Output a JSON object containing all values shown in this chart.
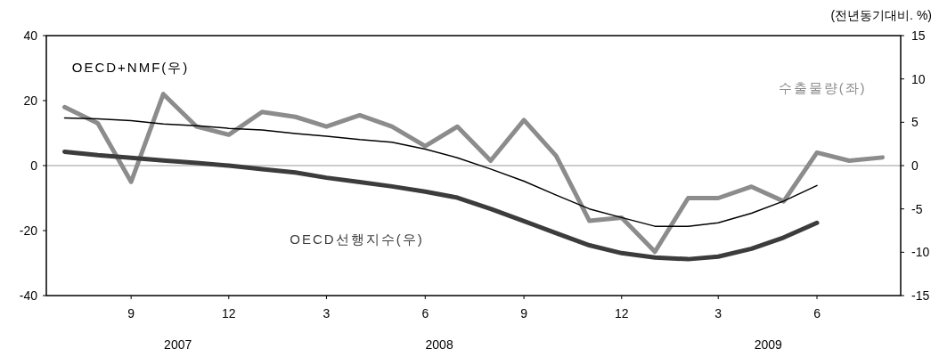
{
  "chart_data": {
    "type": "line",
    "y2label": "(전년동기대비. %)",
    "x": [
      "2007-07",
      "2007-08",
      "2007-09",
      "2007-10",
      "2007-11",
      "2007-12",
      "2008-01",
      "2008-02",
      "2008-03",
      "2008-04",
      "2008-05",
      "2008-06",
      "2008-07",
      "2008-08",
      "2008-09",
      "2008-10",
      "2008-11",
      "2008-12",
      "2009-01",
      "2009-02",
      "2009-03",
      "2009-04",
      "2009-05",
      "2009-06",
      "2009-07",
      "2009-08"
    ],
    "series": [
      {
        "name": "수출물량(좌)",
        "color": "#8c8c8c",
        "values": [
          18,
          13,
          -5,
          22,
          12,
          9.5,
          16.5,
          15,
          12,
          15.5,
          12,
          6,
          12,
          1.5,
          14,
          3,
          -17,
          -16,
          -26.5,
          -10,
          -10,
          -6.5,
          -11,
          4,
          1.5,
          2.5
        ]
      },
      {
        "name": "OECD+NMF(우)",
        "color": "#000000",
        "axis": "y2",
        "values": [
          5.5,
          5.4,
          5.2,
          4.8,
          4.6,
          4.3,
          4.1,
          3.7,
          3.4,
          3.0,
          2.7,
          1.9,
          0.9,
          -0.4,
          -1.8,
          -3.4,
          -5.0,
          -6.0,
          -7.0,
          -7.0,
          -6.6,
          -5.5,
          -4.1,
          -2.3,
          null,
          null
        ]
      },
      {
        "name": "OECD선행지수(우)",
        "color": "#3c3c3c",
        "axis": "y2",
        "values": [
          1.6,
          1.2,
          0.9,
          0.6,
          0.3,
          0,
          -0.4,
          -0.8,
          -1.4,
          -1.9,
          -2.4,
          -3.0,
          -3.7,
          -5.0,
          -6.4,
          -7.8,
          -9.2,
          -10.1,
          -10.6,
          -10.8,
          -10.5,
          -9.6,
          -8.3,
          -6.6,
          null,
          null
        ]
      }
    ],
    "xlim": [
      "2007-06-14",
      "2009-08-18"
    ],
    "xticks": [
      {
        "value": "2007-09",
        "label": "9"
      },
      {
        "value": "2007-12",
        "label": "12"
      },
      {
        "value": "2008-03",
        "label": "3"
      },
      {
        "value": "2008-06",
        "label": "6"
      },
      {
        "value": "2008-09",
        "label": "9"
      },
      {
        "value": "2008-12",
        "label": "12"
      },
      {
        "value": "2009-03",
        "label": "3"
      },
      {
        "value": "2009-06",
        "label": "6"
      }
    ],
    "ylim": [
      -40,
      40
    ],
    "yticks": [
      -40,
      -20,
      0,
      20,
      40
    ],
    "y2lim": [
      -15,
      15
    ],
    "y2ticks": [
      -15,
      -10,
      -5,
      0,
      5,
      10,
      15
    ],
    "ref_lines": [
      {
        "axis": "y",
        "value": 0,
        "color": "#999999"
      }
    ],
    "annotations": [
      "2007",
      "2008",
      "2009"
    ],
    "grid": false,
    "legend": false,
    "marker": "none",
    "line_style": "solid"
  }
}
